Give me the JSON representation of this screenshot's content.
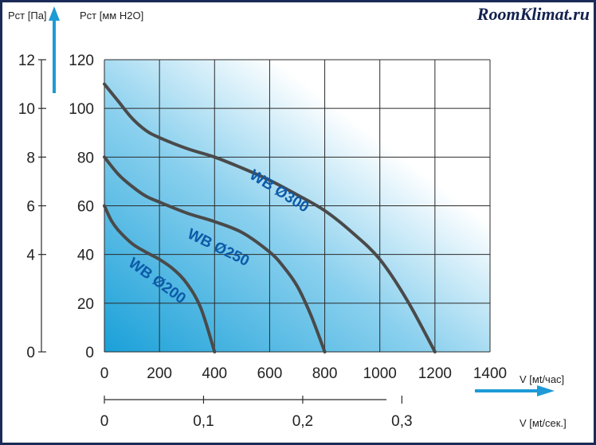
{
  "watermark": "RoomKlimat.ru",
  "colors": {
    "frame": "#1b2a57",
    "curve": "#4a4a4a",
    "accent_arrow": "#1e9ad6",
    "label": "#0d5aa8",
    "gradient_dark": "#1aa0d8",
    "gradient_light": "#ffffff"
  },
  "chart_data": {
    "type": "line",
    "grid": true,
    "x_axis": {
      "label": "V [мt/час]",
      "range": [
        0,
        1400
      ],
      "ticks": [
        "0",
        "200",
        "400",
        "600",
        "800",
        "1000",
        "1200",
        "1400"
      ]
    },
    "x2_axis": {
      "label": "V [мt/сек.]",
      "ticks": [
        "0",
        "0,1",
        "0,2",
        "0,3"
      ],
      "tick_values_m3h": [
        0,
        360,
        720,
        1080
      ]
    },
    "y_left_axis": {
      "label": "Pст [Па]",
      "range": [
        0,
        12
      ],
      "ticks": [
        "0",
        "4",
        "6",
        "8",
        "10",
        "12"
      ],
      "tick_values": [
        0,
        4,
        6,
        8,
        10,
        12
      ]
    },
    "y_axis": {
      "label": "Pст [мм H2O]",
      "range": [
        0,
        120
      ],
      "ticks": [
        "0",
        "20",
        "40",
        "60",
        "80",
        "100",
        "120"
      ]
    },
    "series": [
      {
        "name": "WB Ø300",
        "points": [
          [
            0,
            110
          ],
          [
            50,
            103
          ],
          [
            100,
            96
          ],
          [
            150,
            91
          ],
          [
            200,
            88
          ],
          [
            300,
            83.5
          ],
          [
            400,
            80
          ],
          [
            500,
            75.5
          ],
          [
            600,
            70.5
          ],
          [
            700,
            64.5
          ],
          [
            800,
            58
          ],
          [
            900,
            49
          ],
          [
            1000,
            38
          ],
          [
            1100,
            21
          ],
          [
            1200,
            0
          ]
        ]
      },
      {
        "name": "WB Ø250",
        "points": [
          [
            0,
            80
          ],
          [
            50,
            73
          ],
          [
            100,
            68
          ],
          [
            150,
            64
          ],
          [
            200,
            61.5
          ],
          [
            300,
            57
          ],
          [
            400,
            53.5
          ],
          [
            500,
            49
          ],
          [
            600,
            41
          ],
          [
            650,
            35
          ],
          [
            700,
            27
          ],
          [
            750,
            15
          ],
          [
            800,
            0
          ]
        ]
      },
      {
        "name": "WB Ø200",
        "points": [
          [
            0,
            60
          ],
          [
            25,
            54
          ],
          [
            50,
            50
          ],
          [
            100,
            44.5
          ],
          [
            150,
            41
          ],
          [
            200,
            38
          ],
          [
            250,
            34
          ],
          [
            300,
            28
          ],
          [
            350,
            18
          ],
          [
            400,
            0
          ]
        ]
      }
    ]
  }
}
